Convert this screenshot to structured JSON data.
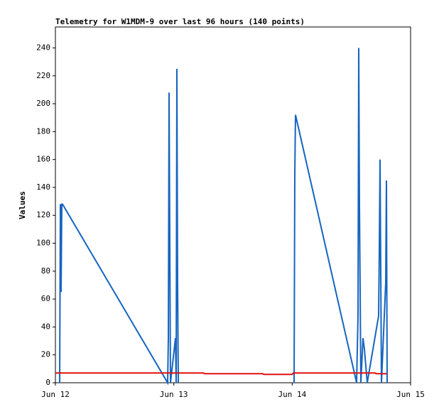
{
  "chart_data": {
    "type": "line",
    "title": "Telemetry for W1MDM-9 over last 96 hours (140 points)",
    "ylabel": "Values",
    "xlim": [
      12,
      15
    ],
    "xticks": [
      {
        "value": 12,
        "label": "Jun 12"
      },
      {
        "value": 13,
        "label": "Jun 13"
      },
      {
        "value": 14,
        "label": "Jun 14"
      },
      {
        "value": 15,
        "label": "Jun 15"
      }
    ],
    "ylim": [
      0,
      255
    ],
    "yticks": [
      0,
      20,
      40,
      60,
      80,
      100,
      120,
      140,
      160,
      180,
      200,
      220,
      240
    ],
    "series": [
      {
        "color": "#1565c0",
        "x": [
          12.036,
          12.042,
          12.048,
          12.054,
          12.06,
          12.948,
          12.954,
          12.96,
          12.966,
          12.972,
          13.014,
          13.02,
          13.026,
          13.032,
          13.038,
          13.5,
          14.016,
          14.022,
          14.028,
          14.544,
          14.556,
          14.562,
          14.568,
          14.574,
          14.58,
          14.598,
          14.61,
          14.634,
          14.73,
          14.736,
          14.742,
          14.748,
          14.754,
          14.79,
          14.796,
          14.802
        ],
        "values": [
          0,
          128,
          65,
          128,
          128,
          0,
          32,
          208,
          104,
          0,
          32,
          0,
          225,
          72,
          0,
          null,
          0,
          150,
          192,
          0,
          48,
          240,
          128,
          65,
          0,
          32,
          24,
          0,
          48,
          97,
          160,
          80,
          0,
          72,
          145,
          0
        ]
      },
      {
        "color": "#e01010",
        "x": [
          12,
          13.25,
          13.26,
          13.75,
          13.76,
          14.0,
          14.01,
          14.7,
          14.71,
          14.8
        ],
        "values": [
          7,
          7,
          6.5,
          6.5,
          6,
          6,
          7,
          7,
          6.5,
          6.5
        ]
      }
    ]
  }
}
